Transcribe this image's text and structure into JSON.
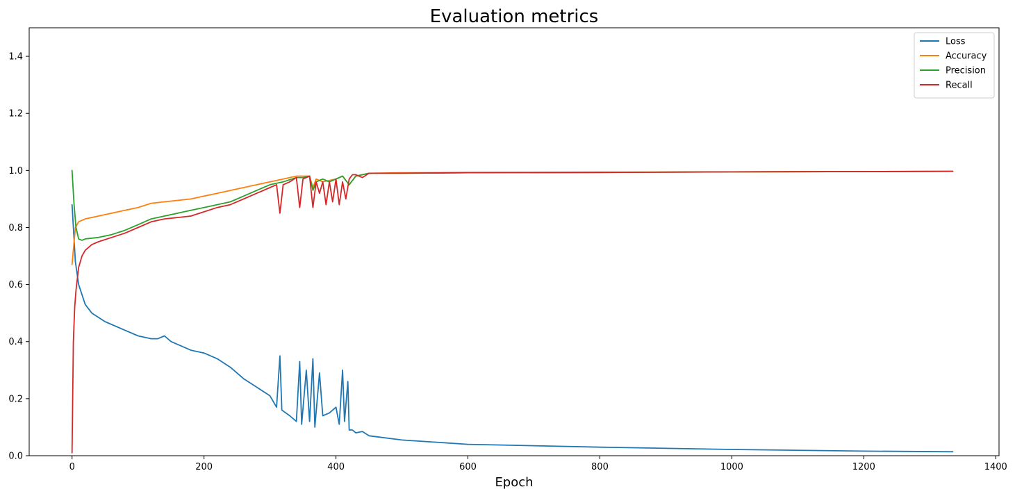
{
  "chart_data": {
    "type": "line",
    "title": "Evaluation metrics",
    "xlabel": "Epoch",
    "ylabel": "",
    "xlim": [
      -65,
      1405
    ],
    "ylim": [
      0.0,
      1.5
    ],
    "x_ticks": [
      0,
      200,
      400,
      600,
      800,
      1000,
      1200,
      1400
    ],
    "y_ticks": [
      0.0,
      0.2,
      0.4,
      0.6,
      0.8,
      1.0,
      1.2,
      1.4
    ],
    "x_tick_labels": [
      "0",
      "200",
      "400",
      "600",
      "800",
      "1000",
      "1200",
      "1400"
    ],
    "y_tick_labels": [
      "0.0",
      "0.2",
      "0.4",
      "0.6",
      "0.8",
      "1.0",
      "1.2",
      "1.4"
    ],
    "grid": false,
    "legend_position": "top-right",
    "series": [
      {
        "name": "Loss",
        "color": "#1f77b4",
        "x": [
          0,
          5,
          10,
          20,
          30,
          50,
          80,
          100,
          120,
          130,
          140,
          150,
          160,
          180,
          200,
          220,
          240,
          260,
          280,
          300,
          310,
          315,
          318,
          330,
          340,
          345,
          348,
          355,
          360,
          365,
          368,
          375,
          380,
          390,
          400,
          405,
          410,
          413,
          418,
          420,
          425,
          430,
          440,
          450,
          500,
          600,
          800,
          1000,
          1200,
          1335
        ],
        "values": [
          0.88,
          0.68,
          0.6,
          0.53,
          0.5,
          0.47,
          0.44,
          0.42,
          0.41,
          0.41,
          0.42,
          0.4,
          0.39,
          0.37,
          0.36,
          0.34,
          0.31,
          0.27,
          0.24,
          0.21,
          0.17,
          0.35,
          0.16,
          0.14,
          0.12,
          0.33,
          0.11,
          0.3,
          0.12,
          0.34,
          0.1,
          0.29,
          0.14,
          0.15,
          0.17,
          0.11,
          0.3,
          0.12,
          0.26,
          0.09,
          0.09,
          0.08,
          0.085,
          0.07,
          0.055,
          0.04,
          0.03,
          0.022,
          0.016,
          0.014
        ]
      },
      {
        "name": "Accuracy",
        "color": "#ff7f0e",
        "x": [
          0,
          5,
          10,
          20,
          40,
          60,
          80,
          100,
          120,
          140,
          160,
          180,
          200,
          220,
          240,
          260,
          280,
          300,
          320,
          340,
          350,
          360,
          365,
          370,
          380,
          400,
          410,
          420,
          430,
          440,
          450,
          500,
          600,
          800,
          1000,
          1200,
          1335
        ],
        "values": [
          0.67,
          0.8,
          0.82,
          0.83,
          0.84,
          0.85,
          0.86,
          0.87,
          0.885,
          0.89,
          0.895,
          0.9,
          0.91,
          0.92,
          0.93,
          0.94,
          0.95,
          0.96,
          0.97,
          0.98,
          0.98,
          0.98,
          0.94,
          0.97,
          0.96,
          0.97,
          0.98,
          0.95,
          0.98,
          0.985,
          0.99,
          0.992,
          0.993,
          0.994,
          0.995,
          0.996,
          0.997
        ]
      },
      {
        "name": "Precision",
        "color": "#2ca02c",
        "x": [
          0,
          3,
          6,
          10,
          15,
          20,
          40,
          60,
          80,
          100,
          120,
          140,
          160,
          180,
          200,
          220,
          240,
          260,
          280,
          300,
          320,
          340,
          350,
          360,
          365,
          370,
          380,
          390,
          400,
          410,
          420,
          430,
          440,
          450,
          500,
          600,
          800,
          1000,
          1200,
          1335
        ],
        "values": [
          1.0,
          0.88,
          0.8,
          0.76,
          0.755,
          0.76,
          0.765,
          0.775,
          0.79,
          0.81,
          0.83,
          0.84,
          0.85,
          0.86,
          0.87,
          0.88,
          0.89,
          0.91,
          0.93,
          0.95,
          0.96,
          0.975,
          0.975,
          0.98,
          0.93,
          0.96,
          0.97,
          0.96,
          0.97,
          0.98,
          0.95,
          0.98,
          0.985,
          0.99,
          0.99,
          0.992,
          0.993,
          0.995,
          0.996,
          0.997
        ]
      },
      {
        "name": "Recall",
        "color": "#d62728",
        "x": [
          0,
          2,
          4,
          6,
          8,
          10,
          15,
          20,
          30,
          40,
          60,
          80,
          100,
          120,
          140,
          160,
          180,
          200,
          220,
          240,
          260,
          280,
          300,
          310,
          315,
          320,
          330,
          340,
          345,
          350,
          360,
          365,
          370,
          375,
          380,
          385,
          390,
          395,
          400,
          405,
          410,
          415,
          420,
          425,
          430,
          440,
          450,
          500,
          600,
          800,
          1000,
          1200,
          1335
        ],
        "values": [
          0.01,
          0.4,
          0.52,
          0.58,
          0.62,
          0.66,
          0.7,
          0.72,
          0.74,
          0.75,
          0.765,
          0.78,
          0.8,
          0.82,
          0.83,
          0.835,
          0.84,
          0.855,
          0.87,
          0.88,
          0.9,
          0.92,
          0.94,
          0.95,
          0.85,
          0.95,
          0.96,
          0.975,
          0.87,
          0.97,
          0.98,
          0.87,
          0.96,
          0.92,
          0.96,
          0.88,
          0.96,
          0.89,
          0.97,
          0.88,
          0.96,
          0.9,
          0.97,
          0.985,
          0.985,
          0.975,
          0.99,
          0.99,
          0.992,
          0.993,
          0.995,
          0.996,
          0.997
        ]
      }
    ]
  }
}
